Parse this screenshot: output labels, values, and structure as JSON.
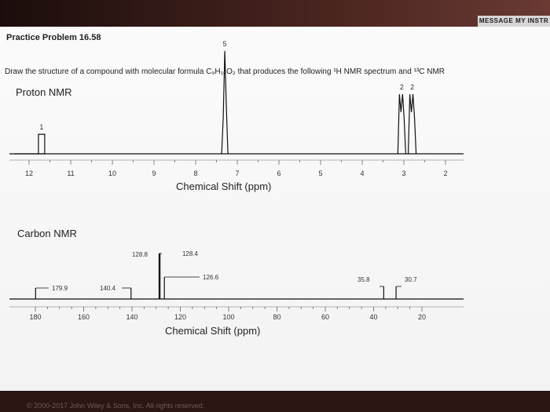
{
  "header": {
    "button_label": "MESSAGE MY INSTR"
  },
  "problem": {
    "title": "Practice Problem 16.58",
    "text": "Draw the structure of a compound with molecular formula C₉H₁₀O₂ that produces the following ¹H NMR spectrum and ¹³C NMR"
  },
  "proton": {
    "section_label": "Proton NMR",
    "xlabel": "Chemical Shift (ppm)",
    "ticks": [
      "12",
      "11",
      "10",
      "9",
      "8",
      "7",
      "6",
      "5",
      "4",
      "3",
      "2"
    ],
    "peaks": [
      {
        "ppm": 11.7,
        "integration": "1",
        "height": 0.18
      },
      {
        "ppm": 7.3,
        "integration": "5",
        "height": 0.95
      },
      {
        "ppm": 3.05,
        "integration": "2",
        "height": 0.55
      },
      {
        "ppm": 2.8,
        "integration": "2",
        "height": 0.55
      }
    ]
  },
  "carbon": {
    "section_label": "Carbon NMR",
    "xlabel": "Chemical Shift (ppm)",
    "ticks": [
      "180",
      "160",
      "140",
      "120",
      "100",
      "80",
      "60",
      "40",
      "20"
    ],
    "peaks": [
      {
        "ppm": 179.9,
        "label": "179.9"
      },
      {
        "ppm": 140.4,
        "label": "140.4"
      },
      {
        "ppm": 128.8,
        "label": "128.8"
      },
      {
        "ppm": 128.4,
        "label": "128.4"
      },
      {
        "ppm": 126.6,
        "label": "126.6"
      },
      {
        "ppm": 35.8,
        "label": "35.8"
      },
      {
        "ppm": 30.7,
        "label": "30.7"
      }
    ]
  },
  "footer": {
    "text": "© 2000-2017 John Wiley & Sons, Inc. All rights reserved."
  }
}
